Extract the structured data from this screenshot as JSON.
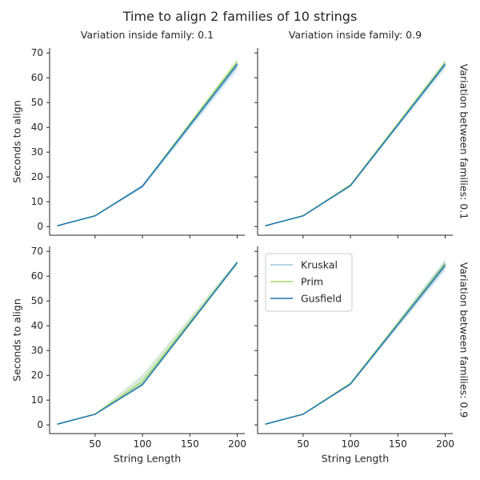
{
  "chart_data": {
    "type": "line",
    "title": "Time to align 2 families of 10 strings",
    "xlabel": "String Length",
    "ylabel": "Seconds to align",
    "x": [
      10,
      50,
      100,
      200
    ],
    "xticks": [
      "50",
      "100",
      "150",
      "200"
    ],
    "yticks": [
      "0",
      "10",
      "20",
      "30",
      "40",
      "50",
      "60",
      "70"
    ],
    "xlim": [
      2,
      208
    ],
    "ylim": [
      -3.5,
      72
    ],
    "col_titles": [
      "Variation inside family: 0.1",
      "Variation inside family: 0.9"
    ],
    "row_titles": [
      "Variation between families: 0.1",
      "Variation between families: 0.9"
    ],
    "legend": {
      "position": "upper-left-of-bottom-right-panel",
      "entries": [
        "Kruskal",
        "Prim",
        "Gusfield"
      ]
    },
    "series_colors": {
      "Kruskal": "#9ecae1",
      "Prim": "#a6d96a",
      "Gusfield": "#1f77b4"
    },
    "panels": [
      {
        "row": 0,
        "col": 0,
        "series": [
          {
            "name": "Kruskal",
            "values": [
              0.3,
              4.3,
              16.0,
              64.5
            ],
            "band": [
              [
                0.2,
                0.4
              ],
              [
                4.1,
                4.5
              ],
              [
                15.4,
                16.6
              ],
              [
                62.5,
                66.0
              ]
            ]
          },
          {
            "name": "Prim",
            "values": [
              0.3,
              4.4,
              16.3,
              66.5
            ],
            "band": [
              [
                0.2,
                0.4
              ],
              [
                4.2,
                4.6
              ],
              [
                15.8,
                16.8
              ],
              [
                64.5,
                68.0
              ]
            ]
          },
          {
            "name": "Gusfield",
            "values": [
              0.3,
              4.3,
              16.3,
              65.5
            ],
            "band": [
              [
                0.2,
                0.4
              ],
              [
                4.1,
                4.5
              ],
              [
                15.9,
                16.7
              ],
              [
                64.5,
                66.5
              ]
            ]
          }
        ]
      },
      {
        "row": 0,
        "col": 1,
        "series": [
          {
            "name": "Kruskal",
            "values": [
              0.3,
              4.3,
              16.5,
              65.0
            ],
            "band": [
              [
                0.2,
                0.4
              ],
              [
                4.1,
                4.5
              ],
              [
                16.0,
                17.0
              ],
              [
                63.0,
                67.0
              ]
            ]
          },
          {
            "name": "Prim",
            "values": [
              0.3,
              4.4,
              16.8,
              66.0
            ],
            "band": [
              [
                0.2,
                0.4
              ],
              [
                4.2,
                4.6
              ],
              [
                16.3,
                17.3
              ],
              [
                64.5,
                67.5
              ]
            ]
          },
          {
            "name": "Gusfield",
            "values": [
              0.3,
              4.3,
              16.5,
              65.5
            ],
            "band": [
              [
                0.2,
                0.4
              ],
              [
                4.1,
                4.5
              ],
              [
                16.1,
                16.9
              ],
              [
                64.5,
                66.5
              ]
            ]
          }
        ]
      },
      {
        "row": 1,
        "col": 0,
        "series": [
          {
            "name": "Kruskal",
            "values": [
              0.3,
              4.3,
              17.5,
              65.3
            ],
            "band": [
              [
                0.2,
                0.4
              ],
              [
                4.1,
                4.5
              ],
              [
                15.5,
                20.5
              ],
              [
                64.3,
                66.3
              ]
            ]
          },
          {
            "name": "Prim",
            "values": [
              0.3,
              4.4,
              17.5,
              65.5
            ],
            "band": [
              [
                0.2,
                0.4
              ],
              [
                4.2,
                4.6
              ],
              [
                15.5,
                20.0
              ],
              [
                64.5,
                66.5
              ]
            ]
          },
          {
            "name": "Gusfield",
            "values": [
              0.3,
              4.3,
              16.3,
              65.5
            ],
            "band": [
              [
                0.2,
                0.4
              ],
              [
                4.1,
                4.5
              ],
              [
                15.9,
                16.7
              ],
              [
                65.0,
                66.0
              ]
            ]
          }
        ]
      },
      {
        "row": 1,
        "col": 1,
        "series": [
          {
            "name": "Kruskal",
            "values": [
              0.3,
              4.3,
              16.5,
              64.5
            ],
            "band": [
              [
                0.2,
                0.4
              ],
              [
                4.1,
                4.5
              ],
              [
                16.0,
                17.0
              ],
              [
                62.0,
                67.0
              ]
            ]
          },
          {
            "name": "Prim",
            "values": [
              0.3,
              4.4,
              16.8,
              65.0
            ],
            "band": [
              [
                0.2,
                0.4
              ],
              [
                4.2,
                4.6
              ],
              [
                16.3,
                17.3
              ],
              [
                63.5,
                66.5
              ]
            ]
          },
          {
            "name": "Gusfield",
            "values": [
              0.3,
              4.3,
              16.5,
              64.5
            ],
            "band": [
              [
                0.2,
                0.4
              ],
              [
                4.1,
                4.5
              ],
              [
                16.1,
                16.9
              ],
              [
                63.0,
                66.0
              ]
            ]
          }
        ]
      }
    ]
  }
}
